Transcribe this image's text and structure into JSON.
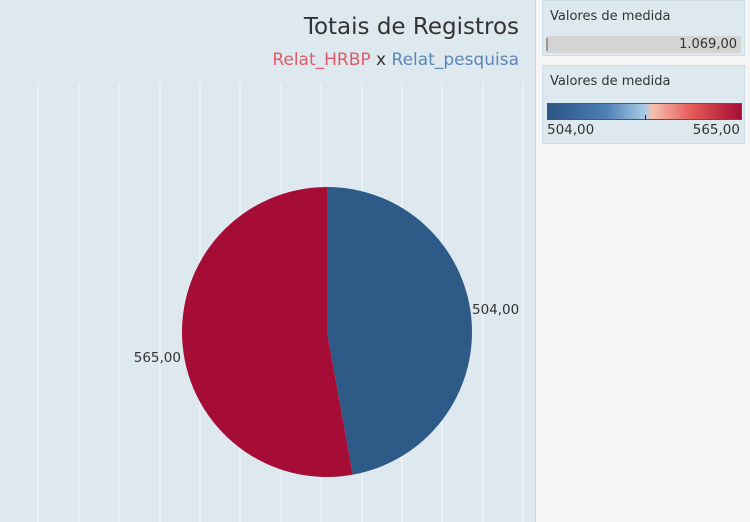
{
  "chart_data": {
    "type": "pie",
    "title": "Totais de Registros",
    "subtitle_parts": [
      "Relat_HRBP",
      "x",
      "Relat_pesquisa"
    ],
    "slices": [
      {
        "label": "504,00",
        "value": 504,
        "color": "#2e5a88"
      },
      {
        "label": "565,00",
        "value": 565,
        "color": "#a50d36"
      }
    ],
    "grid": "vertical lines"
  },
  "legends": {
    "size": {
      "title": "Valores de medida",
      "value_label": "1.069,00"
    },
    "color": {
      "title": "Valores de medida",
      "min_label": "504,00",
      "max_label": "565,00",
      "colors": [
        "#2b5585",
        "#a6cbe6",
        "#e45855",
        "#a50d36"
      ]
    }
  },
  "colors": {
    "background": "#dde9ef",
    "gridline": "#f4f8fa",
    "side_panel": "#f5f5f5"
  }
}
